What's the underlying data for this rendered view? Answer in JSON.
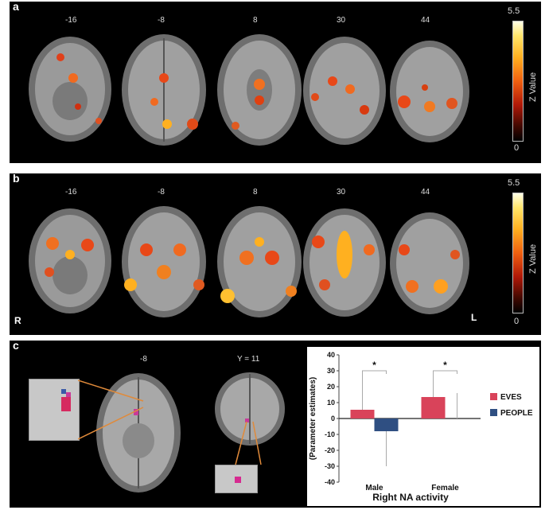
{
  "panels": {
    "a": {
      "letter": "a",
      "slices": [
        "-16",
        "-8",
        "8",
        "30",
        "44"
      ],
      "colorbar": {
        "max": "5.5",
        "min": "0",
        "title": "Z Value"
      }
    },
    "b": {
      "letter": "b",
      "slices": [
        "-16",
        "-8",
        "8",
        "30",
        "44"
      ],
      "colorbar": {
        "max": "5.5",
        "min": "0",
        "title": "Z Value"
      },
      "left_side": "R",
      "right_side": "L"
    },
    "c": {
      "letter": "c",
      "axial_label": "-8",
      "coronal_label": "Y = 11"
    }
  },
  "chart_data": {
    "type": "bar",
    "categories": [
      "Male",
      "Female"
    ],
    "series": [
      {
        "name": "EVES",
        "values": [
          5.5,
          13.5
        ],
        "error_up": [
          22.5,
          14.5
        ],
        "color": "#d9435a"
      },
      {
        "name": "PEOPLE",
        "values": [
          -8,
          0
        ],
        "error_low": [
          22,
          0
        ],
        "error_up": [
          0,
          16
        ],
        "color": "#2f4f82"
      }
    ],
    "title": "Right NA activity",
    "ylabel": "(Parameter estimates)",
    "xlabel": "",
    "ylim": [
      -40,
      40
    ],
    "yticks": [
      "40",
      "30",
      "20",
      "10",
      "0",
      "-10",
      "-20",
      "-30",
      "-40"
    ],
    "significance": [
      "*",
      "*"
    ],
    "legend_position": "right"
  },
  "colors": {
    "accent": "#d9435a",
    "secondary": "#2f4f82",
    "background": "#000000"
  }
}
